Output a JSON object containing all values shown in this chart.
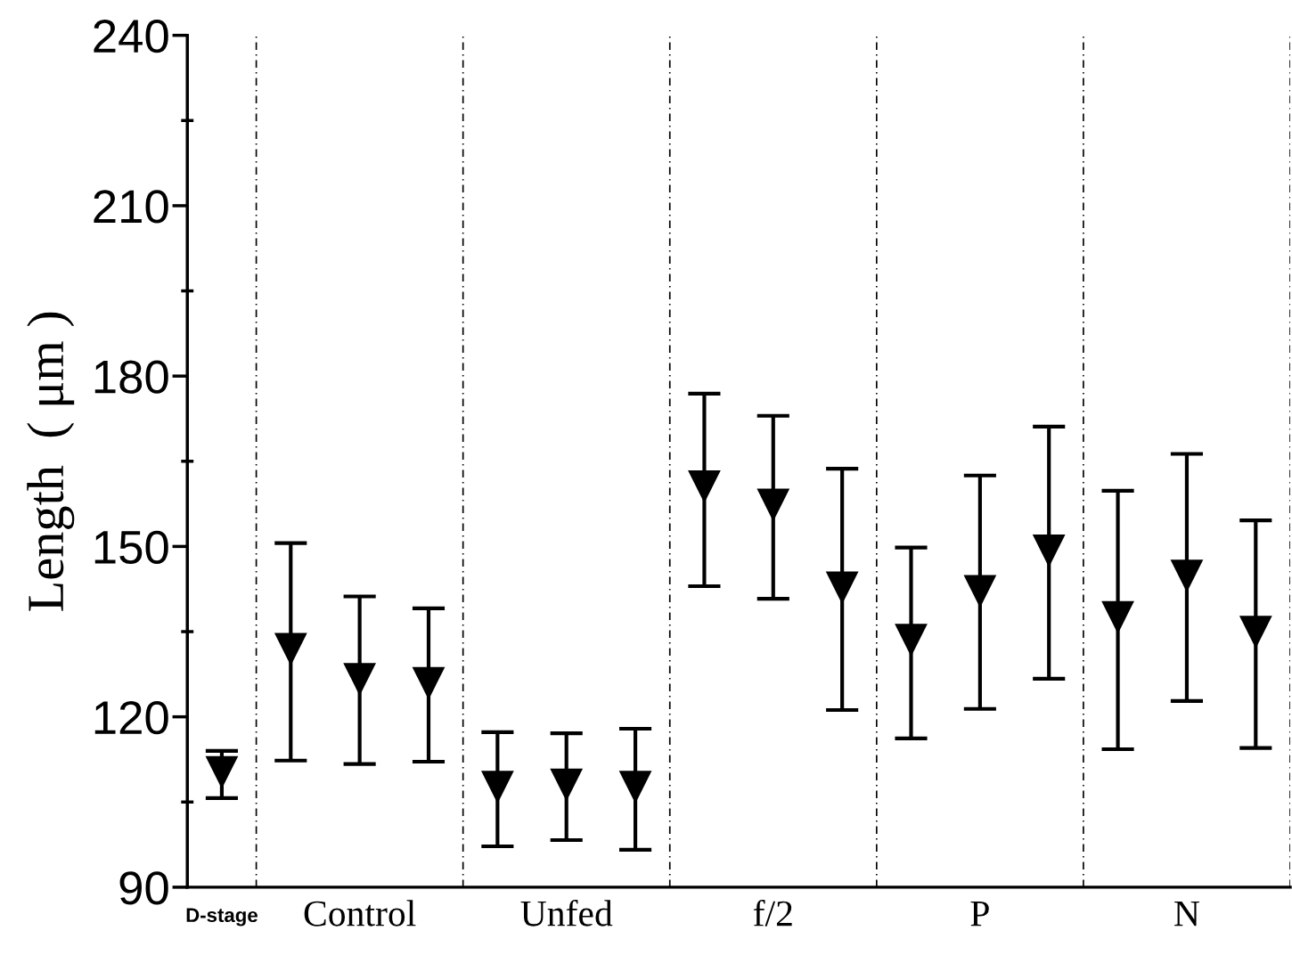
{
  "chart_data": {
    "type": "scatter",
    "ylabel": "Length  ( μm )",
    "categories": [
      "D-stage",
      null,
      "Control",
      null,
      null,
      "Unfed",
      null,
      null,
      "f/2",
      null,
      null,
      "P",
      null,
      null,
      "N",
      null
    ],
    "values": [
      110.2,
      131.9,
      126.6,
      125.9,
      107.6,
      108.0,
      107.6,
      160.5,
      157.3,
      142.7,
      133.5,
      142.1,
      149.2,
      137.5,
      144.8,
      134.9
    ],
    "errors": [
      [
        105.7,
        114.0
      ],
      [
        112.3,
        150.6
      ],
      [
        111.7,
        141.2
      ],
      [
        112.1,
        139.1
      ],
      [
        97.2,
        117.3
      ],
      [
        98.3,
        117.1
      ],
      [
        96.6,
        117.9
      ],
      [
        143.0,
        176.9
      ],
      [
        140.8,
        173.0
      ],
      [
        121.2,
        163.7
      ],
      [
        116.2,
        149.8
      ],
      [
        121.4,
        162.5
      ],
      [
        126.7,
        171.1
      ],
      [
        114.3,
        159.8
      ],
      [
        122.8,
        166.3
      ],
      [
        114.5,
        154.6
      ]
    ],
    "color": "#000000",
    "marker": "triangle",
    "ylim": [
      90,
      240
    ],
    "yticks": [
      90,
      {
        "value": 105,
        "label": null
      },
      120,
      {
        "value": 135,
        "label": null
      },
      150,
      {
        "value": 165,
        "label": null
      },
      180,
      {
        "value": 195,
        "label": null
      },
      210,
      {
        "value": 225,
        "label": null
      },
      240
    ],
    "grid": false,
    "legend": false
  }
}
